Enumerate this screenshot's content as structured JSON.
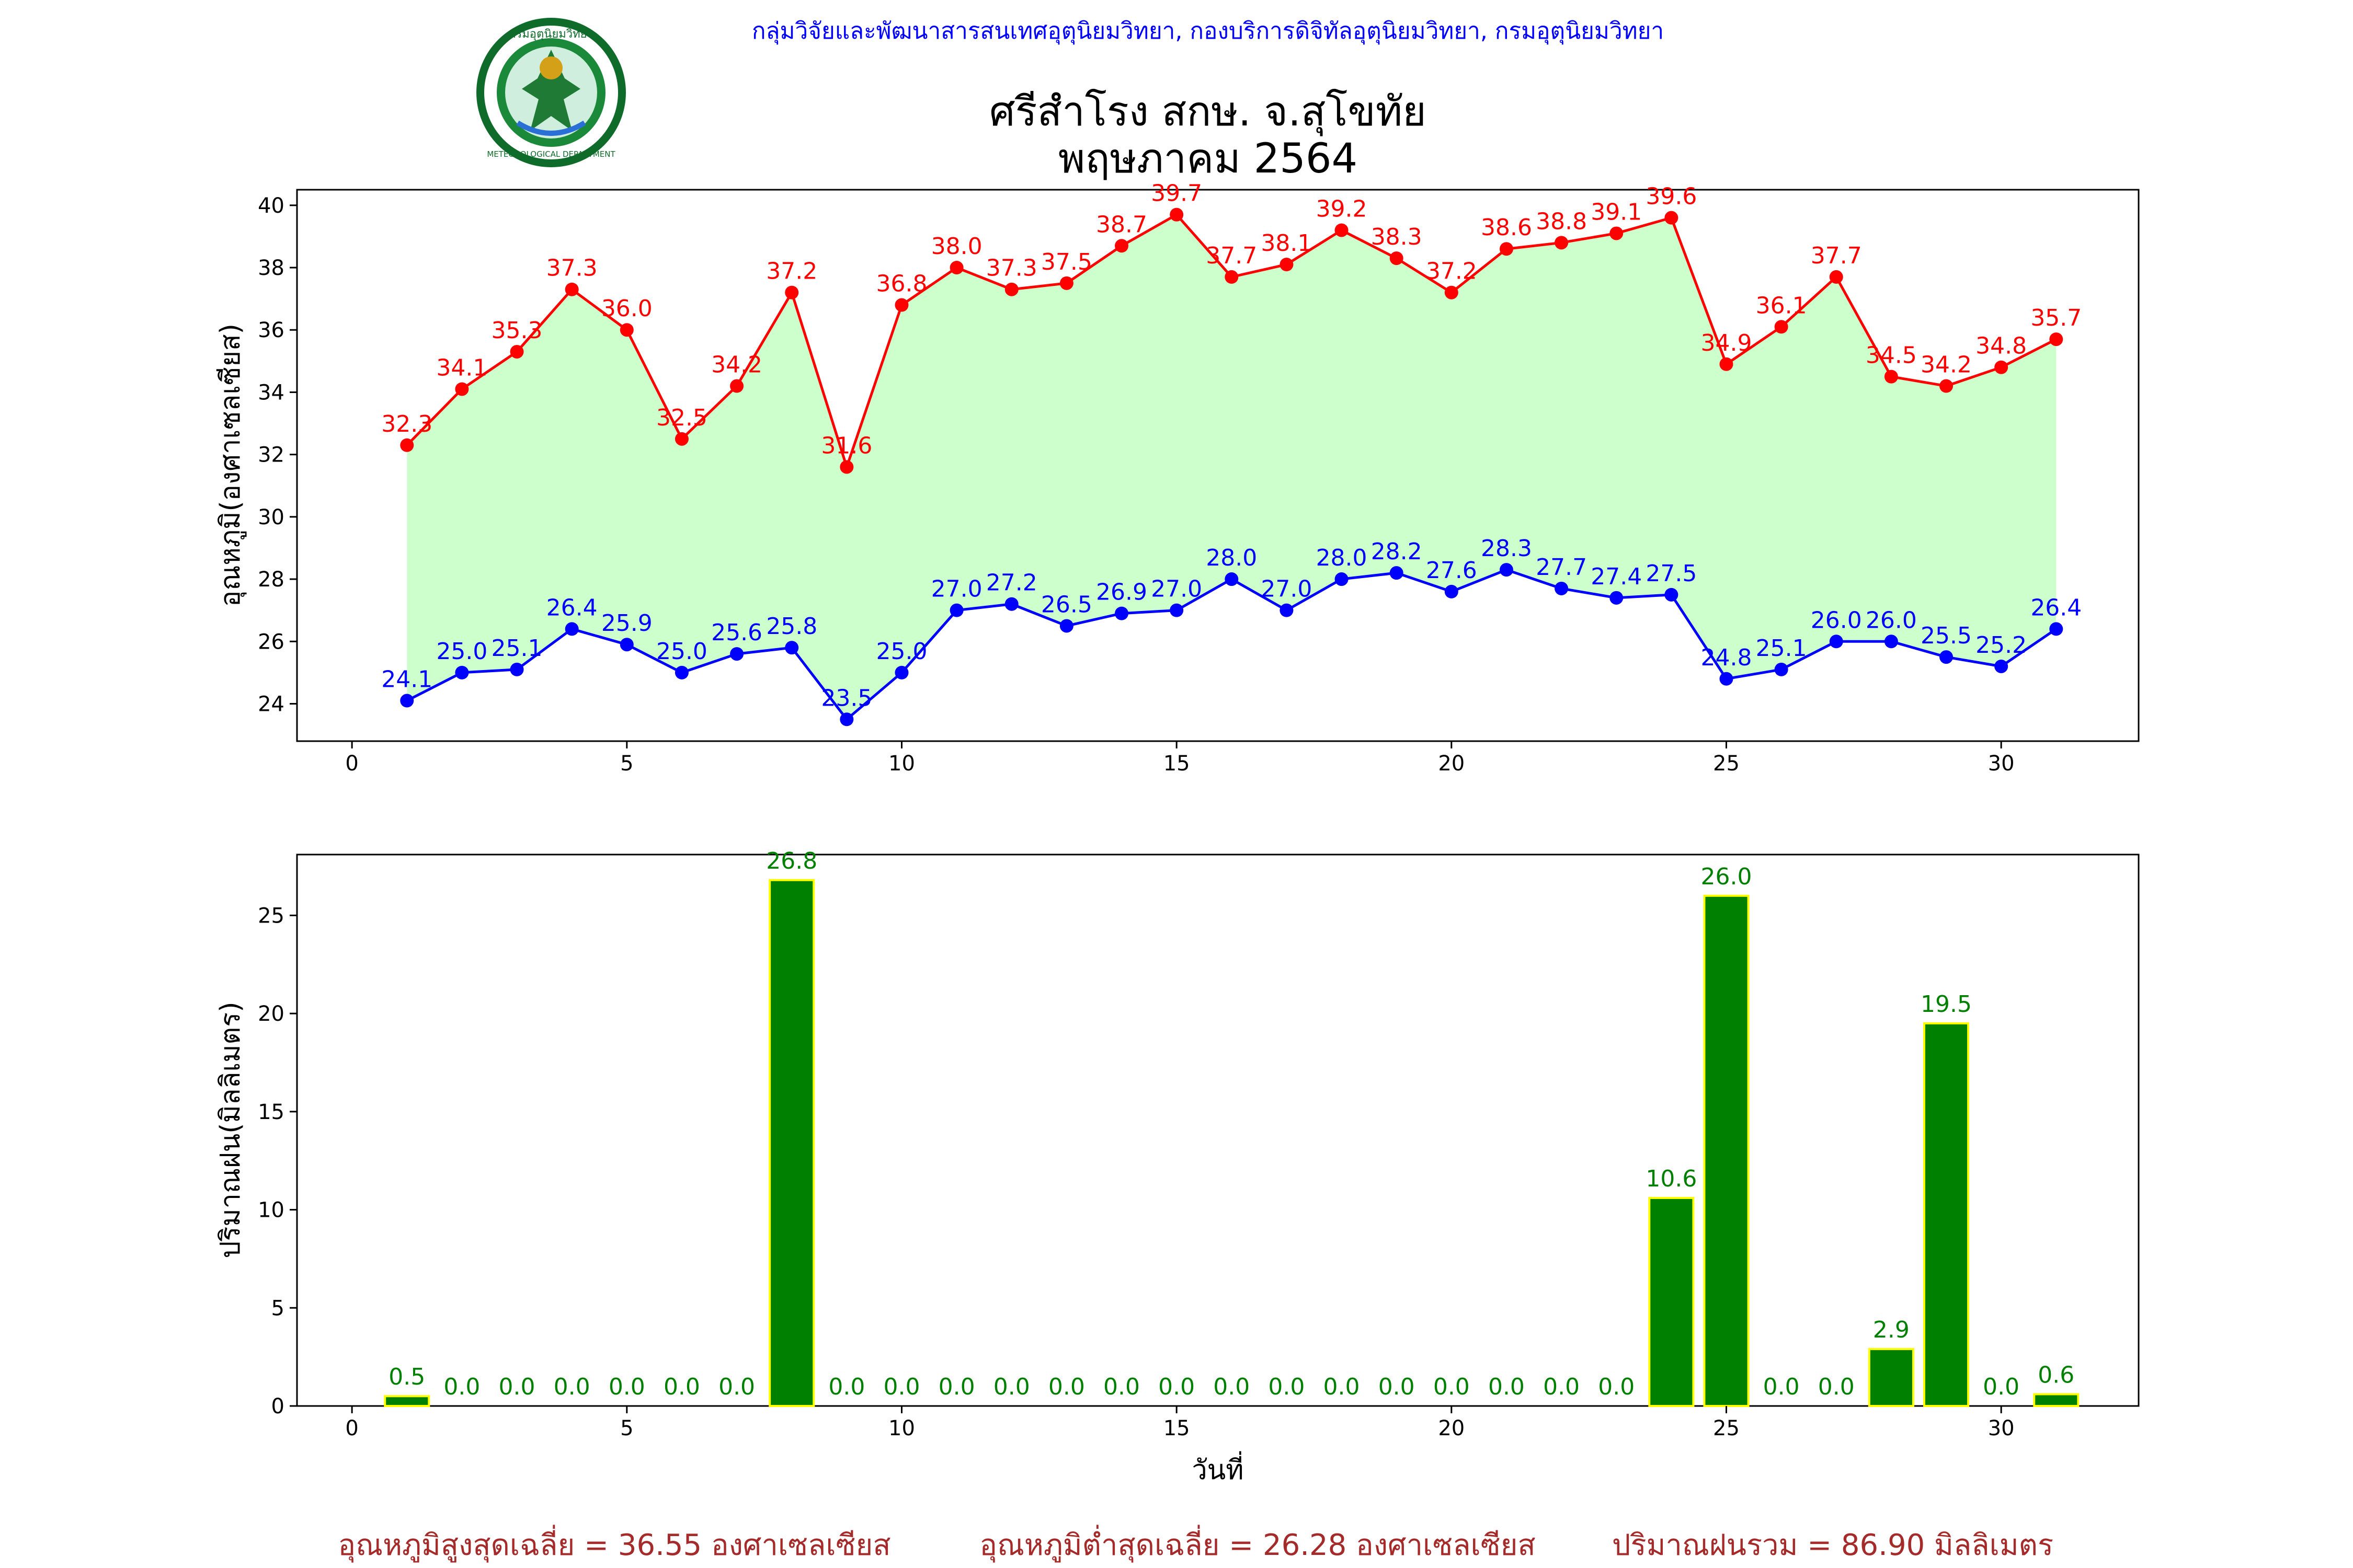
{
  "header": {
    "agency": "กลุ่มวิจัยและพัฒนาสารสนเทศอุตุนิยมวิทยา, กองบริการดิจิทัลอุตุนิยมวิทยา, กรมอุตุนิยมวิทยา",
    "station": "ศรีสำโรง สกษ. จ.สุโขทัย",
    "period": "พฤษภาคม 2564",
    "logo_text": "METEOROLOGICAL DEPARTMENT",
    "logo_thai": "กรมอุตุนิยมวิทยา"
  },
  "colors": {
    "max": "#ff0000",
    "min": "#0000ff",
    "fill": "#ccffcc",
    "bar": "#008000",
    "bar_edge": "#ffff00",
    "bar_label": "#008000",
    "summary": "#a52a2a",
    "header": "#0000ff"
  },
  "chart_data": [
    {
      "type": "line",
      "ylabel": "อุณหภูมิ(องศาเซลเซียส)",
      "xlim": [
        -1,
        32.5
      ],
      "ylim": [
        22.8,
        40.5
      ],
      "xticks": [
        0,
        5,
        10,
        15,
        20,
        25,
        30
      ],
      "yticks": [
        24,
        26,
        28,
        30,
        32,
        34,
        36,
        38,
        40
      ],
      "x": [
        1,
        2,
        3,
        4,
        5,
        6,
        7,
        8,
        9,
        10,
        11,
        12,
        13,
        14,
        15,
        16,
        17,
        18,
        19,
        20,
        21,
        22,
        23,
        24,
        25,
        26,
        27,
        28,
        29,
        30,
        31
      ],
      "series": [
        {
          "key": "max",
          "values": [
            32.3,
            34.1,
            35.3,
            37.3,
            36.0,
            32.5,
            34.2,
            37.2,
            31.6,
            36.8,
            38.0,
            37.3,
            37.5,
            38.7,
            39.7,
            37.7,
            38.1,
            39.2,
            38.3,
            37.2,
            38.6,
            38.8,
            39.1,
            39.6,
            34.9,
            36.1,
            37.7,
            34.5,
            34.2,
            34.8,
            35.7
          ]
        },
        {
          "key": "min",
          "values": [
            24.1,
            25.0,
            25.1,
            26.4,
            25.9,
            25.0,
            25.6,
            25.8,
            23.5,
            25.0,
            27.0,
            27.2,
            26.5,
            26.9,
            27.0,
            28.0,
            27.0,
            28.0,
            28.2,
            27.6,
            28.3,
            27.7,
            27.4,
            27.5,
            24.8,
            25.1,
            26.0,
            26.0,
            25.5,
            25.2,
            26.4
          ]
        }
      ]
    },
    {
      "type": "bar",
      "xlabel": "วันที่",
      "ylabel": "ปริมาณฝน(มิลลิเมตร)",
      "xlim": [
        -1,
        32.5
      ],
      "ylim": [
        0,
        28.1
      ],
      "xticks": [
        0,
        5,
        10,
        15,
        20,
        25,
        30
      ],
      "yticks": [
        0,
        5,
        10,
        15,
        20,
        25
      ],
      "x": [
        1,
        2,
        3,
        4,
        5,
        6,
        7,
        8,
        9,
        10,
        11,
        12,
        13,
        14,
        15,
        16,
        17,
        18,
        19,
        20,
        21,
        22,
        23,
        24,
        25,
        26,
        27,
        28,
        29,
        30,
        31
      ],
      "values": [
        0.5,
        0.0,
        0.0,
        0.0,
        0.0,
        0.0,
        0.0,
        26.8,
        0.0,
        0.0,
        0.0,
        0.0,
        0.0,
        0.0,
        0.0,
        0.0,
        0.0,
        0.0,
        0.0,
        0.0,
        0.0,
        0.0,
        0.0,
        10.6,
        26.0,
        0.0,
        0.0,
        2.9,
        19.5,
        0.0,
        0.6
      ]
    }
  ],
  "summary": {
    "avg_max": "อุณหภูมิสูงสุดเฉลี่ย = 36.55 องศาเซลเซียส",
    "avg_min": "อุณหภูมิต่ำสุดเฉลี่ย = 26.28 องศาเซลเซียส",
    "total_rain": "ปริมาณฝนรวม = 86.90 มิลลิเมตร"
  }
}
